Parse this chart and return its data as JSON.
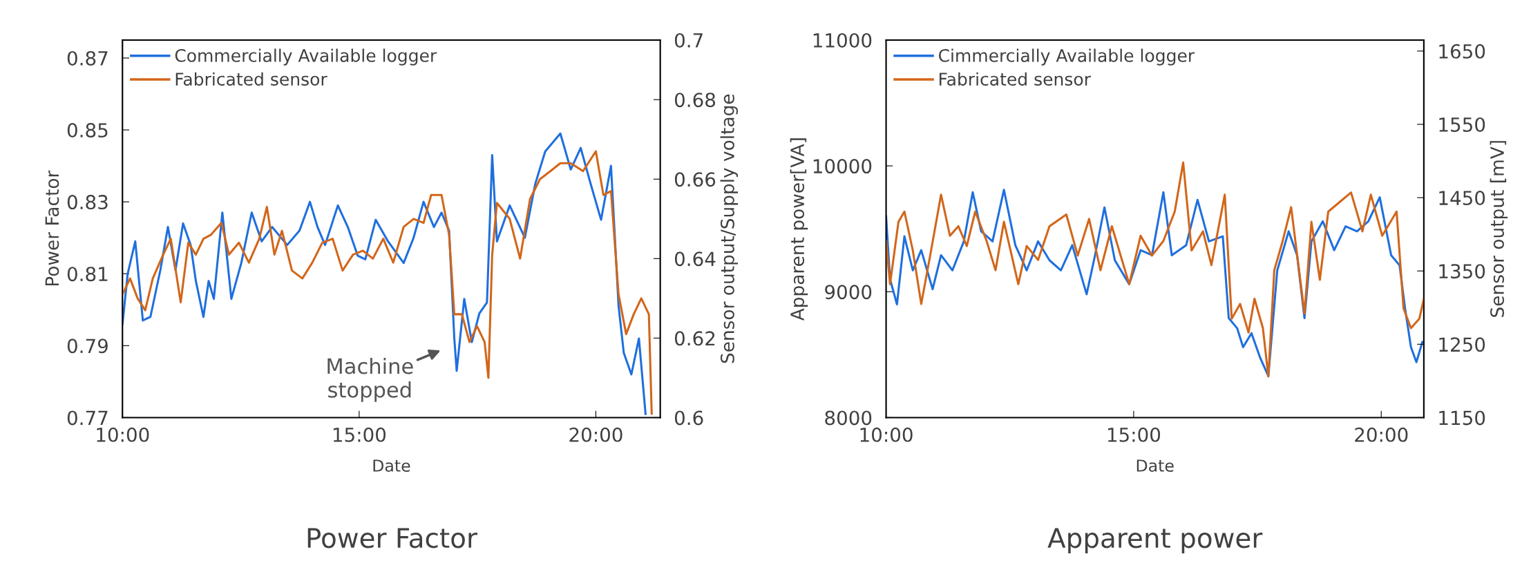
{
  "chart_data": [
    {
      "type": "line",
      "title": "Power Factor",
      "xlabel": "Date",
      "ylabel": "Power Factor",
      "y2label": "Sensor output/Supply voltage",
      "xlim": [
        10,
        21.36
      ],
      "xticks": [
        {
          "value": 10,
          "label": "10:00"
        },
        {
          "value": 15,
          "label": "15:00"
        },
        {
          "value": 20,
          "label": "20:00"
        }
      ],
      "ylim": [
        0.77,
        0.875
      ],
      "yticks": [
        0.77,
        0.79,
        0.81,
        0.83,
        0.85,
        0.87
      ],
      "y2lim": [
        0.6,
        0.695
      ],
      "y2ticks": [
        0.6,
        0.62,
        0.64,
        0.66,
        0.68,
        {
          "value": 0.695,
          "label": "0.7"
        }
      ],
      "legend": "top left",
      "grid": false,
      "annotations": [
        "Machine\nstopped"
      ],
      "series": [
        {
          "name": "Commercially Available logger",
          "color": "#1f6fde",
          "x": [
            10.0,
            10.11,
            10.27,
            10.43,
            10.59,
            10.8,
            10.96,
            11.12,
            11.28,
            11.44,
            11.55,
            11.71,
            11.82,
            11.93,
            12.11,
            12.3,
            12.51,
            12.73,
            12.94,
            13.16,
            13.48,
            13.74,
            13.96,
            14.12,
            14.28,
            14.55,
            14.76,
            14.97,
            15.13,
            15.35,
            15.61,
            15.94,
            16.15,
            16.36,
            16.58,
            16.74,
            16.9,
            17.01,
            17.06,
            17.22,
            17.38,
            17.54,
            17.7,
            17.81,
            17.91,
            18.18,
            18.5,
            18.72,
            18.93,
            19.25,
            19.47,
            19.68,
            19.89,
            20.11,
            20.32,
            20.48,
            20.59,
            20.75,
            20.91,
            21.05
          ],
          "values": [
            0.796,
            0.81,
            0.819,
            0.797,
            0.798,
            0.811,
            0.823,
            0.811,
            0.824,
            0.818,
            0.808,
            0.798,
            0.808,
            0.803,
            0.827,
            0.803,
            0.813,
            0.827,
            0.819,
            0.823,
            0.818,
            0.822,
            0.83,
            0.823,
            0.818,
            0.829,
            0.823,
            0.815,
            0.814,
            0.825,
            0.819,
            0.813,
            0.82,
            0.83,
            0.823,
            0.827,
            0.822,
            0.792,
            0.783,
            0.803,
            0.791,
            0.799,
            0.802,
            0.843,
            0.819,
            0.829,
            0.82,
            0.835,
            0.844,
            0.849,
            0.839,
            0.845,
            0.835,
            0.825,
            0.84,
            0.801,
            0.788,
            0.782,
            0.792,
            0.771
          ]
        },
        {
          "name": "Fabricated sensor",
          "color": "#d2661a",
          "axis": "y2",
          "x": [
            10.0,
            10.16,
            10.32,
            10.48,
            10.64,
            10.86,
            11.02,
            11.23,
            11.39,
            11.55,
            11.71,
            11.87,
            12.09,
            12.25,
            12.46,
            12.67,
            12.89,
            13.05,
            13.21,
            13.37,
            13.58,
            13.8,
            14.01,
            14.22,
            14.44,
            14.65,
            14.87,
            15.08,
            15.29,
            15.51,
            15.72,
            15.94,
            16.15,
            16.36,
            16.52,
            16.74,
            16.9,
            17.01,
            17.17,
            17.33,
            17.49,
            17.65,
            17.73,
            17.81,
            17.91,
            18.18,
            18.4,
            18.61,
            18.82,
            19.04,
            19.25,
            19.47,
            19.73,
            20.0,
            20.16,
            20.32,
            20.48,
            20.64,
            20.8,
            20.96,
            21.12,
            21.18
          ],
          "values": [
            0.631,
            0.635,
            0.63,
            0.627,
            0.635,
            0.641,
            0.645,
            0.629,
            0.644,
            0.641,
            0.645,
            0.646,
            0.649,
            0.641,
            0.644,
            0.639,
            0.645,
            0.653,
            0.641,
            0.647,
            0.637,
            0.635,
            0.639,
            0.644,
            0.645,
            0.637,
            0.641,
            0.642,
            0.64,
            0.645,
            0.639,
            0.648,
            0.65,
            0.649,
            0.656,
            0.656,
            0.646,
            0.626,
            0.626,
            0.619,
            0.623,
            0.619,
            0.61,
            0.641,
            0.654,
            0.65,
            0.64,
            0.655,
            0.66,
            0.662,
            0.664,
            0.664,
            0.662,
            0.667,
            0.656,
            0.657,
            0.631,
            0.621,
            0.626,
            0.63,
            0.626,
            0.601
          ]
        }
      ]
    },
    {
      "type": "line",
      "title": "Apparent power",
      "xlabel": "Date",
      "ylabel": "Apparent power[VA]",
      "y2label": "Sensor output [mV]",
      "xlim": [
        10,
        20.86
      ],
      "xticks": [
        {
          "value": 10,
          "label": "10:00"
        },
        {
          "value": 15,
          "label": "15:00"
        },
        {
          "value": 20,
          "label": "20:00"
        }
      ],
      "ylim": [
        8000,
        11000
      ],
      "yticks": [
        8000,
        9000,
        10000,
        11000
      ],
      "y2lim": [
        1150,
        1665
      ],
      "y2ticks": [
        1150,
        1250,
        1350,
        1450,
        1550,
        1650
      ],
      "legend": "top left",
      "grid": false,
      "series": [
        {
          "name": "Cimmercially Available logger",
          "color": "#1f6fde",
          "x": [
            10.0,
            10.08,
            10.22,
            10.37,
            10.54,
            10.71,
            10.94,
            11.11,
            11.34,
            11.57,
            11.75,
            11.92,
            12.15,
            12.38,
            12.61,
            12.84,
            13.07,
            13.3,
            13.53,
            13.76,
            14.05,
            14.22,
            14.41,
            14.62,
            14.91,
            15.14,
            15.37,
            15.6,
            15.77,
            16.06,
            16.29,
            16.52,
            16.8,
            16.92,
            17.09,
            17.21,
            17.38,
            17.55,
            17.72,
            17.9,
            18.13,
            18.3,
            18.45,
            18.59,
            18.82,
            19.05,
            19.28,
            19.51,
            19.74,
            19.97,
            20.2,
            20.37,
            20.48,
            20.6,
            20.71,
            20.83
          ],
          "values": [
            9600,
            9100,
            8900,
            9440,
            9170,
            9330,
            9020,
            9290,
            9170,
            9400,
            9790,
            9480,
            9400,
            9810,
            9370,
            9170,
            9400,
            9250,
            9170,
            9370,
            8980,
            9290,
            9670,
            9250,
            9060,
            9330,
            9290,
            9790,
            9290,
            9370,
            9730,
            9400,
            9440,
            8790,
            8710,
            8560,
            8670,
            8480,
            8330,
            9170,
            9480,
            9290,
            8790,
            9400,
            9560,
            9330,
            9520,
            9480,
            9560,
            9750,
            9290,
            9210,
            8870,
            8560,
            8440,
            8600
          ]
        },
        {
          "name": "Fabricated sensor",
          "color": "#d2661a",
          "axis": "y2",
          "x": [
            10.0,
            10.08,
            10.25,
            10.37,
            10.54,
            10.71,
            10.89,
            11.11,
            11.29,
            11.46,
            11.63,
            11.8,
            12.03,
            12.21,
            12.38,
            12.67,
            12.84,
            13.07,
            13.3,
            13.64,
            13.87,
            14.1,
            14.33,
            14.56,
            14.91,
            15.14,
            15.37,
            15.6,
            15.83,
            16.0,
            16.17,
            16.4,
            16.57,
            16.84,
            16.98,
            17.15,
            17.32,
            17.44,
            17.61,
            17.72,
            17.84,
            18.01,
            18.18,
            18.45,
            18.59,
            18.76,
            18.93,
            19.16,
            19.39,
            19.62,
            19.79,
            20.02,
            20.31,
            20.45,
            20.6,
            20.77,
            20.86
          ],
          "values": [
            1391,
            1332,
            1417,
            1431,
            1378,
            1305,
            1371,
            1454,
            1398,
            1411,
            1384,
            1431,
            1391,
            1351,
            1417,
            1332,
            1384,
            1365,
            1411,
            1427,
            1371,
            1421,
            1351,
            1411,
            1332,
            1398,
            1371,
            1391,
            1431,
            1498,
            1378,
            1404,
            1358,
            1454,
            1285,
            1305,
            1266,
            1312,
            1272,
            1206,
            1351,
            1391,
            1437,
            1292,
            1417,
            1338,
            1431,
            1444,
            1457,
            1404,
            1454,
            1398,
            1431,
            1299,
            1272,
            1285,
            1312
          ]
        }
      ]
    }
  ]
}
